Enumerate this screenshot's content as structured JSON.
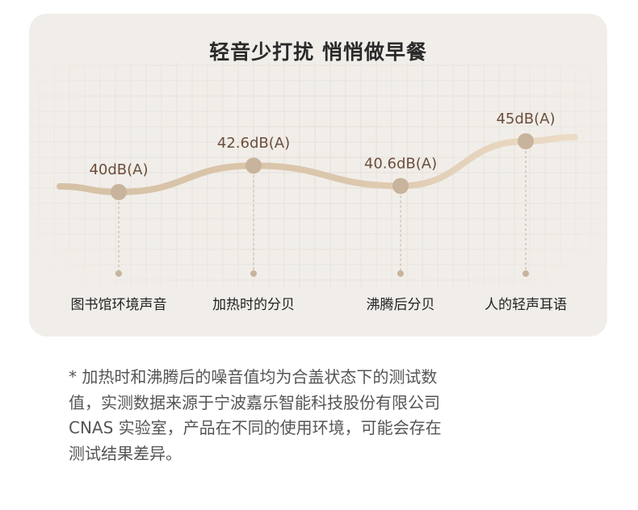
{
  "chart_data": {
    "type": "line",
    "title": "轻音少打扰 悄悄做早餐",
    "unit": "dB(A)",
    "categories": [
      "图书馆环境声音",
      "加热时的分贝",
      "沸腾后分贝",
      "人的轻声耳语"
    ],
    "values": [
      40,
      42.6,
      40.6,
      45
    ],
    "value_labels": [
      "40dB(A)",
      "42.6dB(A)",
      "40.6dB(A)",
      "45dB(A)"
    ],
    "grid": true,
    "colors": {
      "line_start": "#d6c1a6",
      "line_end": "#ecdcc6",
      "marker": "#c8b49c",
      "guide": "#cbb9a6",
      "value_text": "#6b4e3c"
    }
  },
  "footnote": "* 加热时和沸腾后的噪音值均为合盖状态下的测试数\n值，实测数据来源于宁波嘉乐智能科技股份有限公司\nCNAS 实验室，产品在不同的使用环境，可能会存在\n测试结果差异。"
}
